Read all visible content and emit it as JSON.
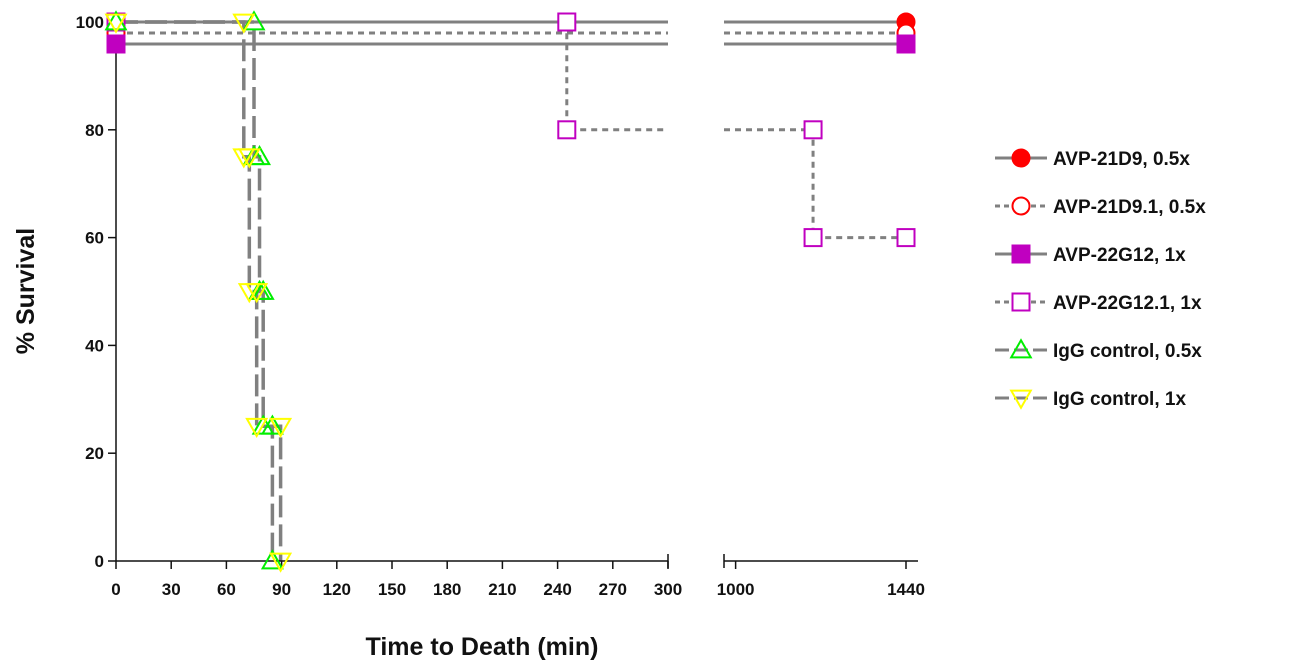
{
  "chart_data": {
    "type": "line",
    "xlabel": "Time to Death (min)",
    "ylabel": "% Survival",
    "ylim": [
      0,
      100
    ],
    "y_ticks": [
      0,
      20,
      40,
      60,
      80,
      100
    ],
    "x_axis": {
      "broken": true,
      "segment1": {
        "range": [
          0,
          300
        ],
        "ticks": [
          "0",
          "30",
          "60",
          "90",
          "120",
          "150",
          "180",
          "210",
          "240",
          "270",
          "300"
        ]
      },
      "segment2": {
        "range": [
          970,
          1440
        ],
        "ticks": [
          "1000",
          "1440"
        ]
      }
    },
    "grid": false,
    "legend_position": "right",
    "series": [
      {
        "name": "AVP-21D9, 0.5x",
        "marker": "circle-filled",
        "color": "#ff0000",
        "line": "solid",
        "points": [
          [
            0,
            100
          ],
          [
            1440,
            100
          ]
        ]
      },
      {
        "name": "AVP-21D9.1, 0.5x",
        "marker": "circle-open",
        "color": "#ff0000",
        "line": "dashed",
        "points": [
          [
            0,
            100
          ],
          [
            1440,
            100
          ]
        ]
      },
      {
        "name": "AVP-22G12, 1x",
        "marker": "square-filled",
        "color": "#c000c0",
        "line": "solid",
        "points": [
          [
            0,
            100
          ],
          [
            1440,
            100
          ]
        ]
      },
      {
        "name": "AVP-22G12.1, 1x",
        "marker": "square-open",
        "color": "#c000c0",
        "line": "dashed",
        "points": [
          [
            0,
            100
          ],
          [
            245,
            100
          ],
          [
            245,
            80
          ],
          [
            1200,
            80
          ],
          [
            1200,
            60
          ],
          [
            1440,
            60
          ]
        ]
      },
      {
        "name": "IgG control, 0.5x",
        "marker": "triangle-up-open",
        "color": "#00ee00",
        "line": "longdash",
        "points": [
          [
            0,
            100
          ],
          [
            75,
            100
          ],
          [
            75,
            75
          ],
          [
            78,
            75
          ],
          [
            78,
            50
          ],
          [
            80,
            50
          ],
          [
            80,
            25
          ],
          [
            85,
            25
          ],
          [
            85,
            0
          ]
        ]
      },
      {
        "name": "IgG control, 1x",
        "marker": "triangle-down-open",
        "color": "#ffff00",
        "line": "longdash",
        "points": [
          [
            0,
            100
          ],
          [
            70,
            100
          ],
          [
            70,
            75
          ],
          [
            73,
            75
          ],
          [
            73,
            50
          ],
          [
            77,
            50
          ],
          [
            77,
            25
          ],
          [
            90,
            25
          ],
          [
            90,
            0
          ]
        ]
      }
    ]
  }
}
